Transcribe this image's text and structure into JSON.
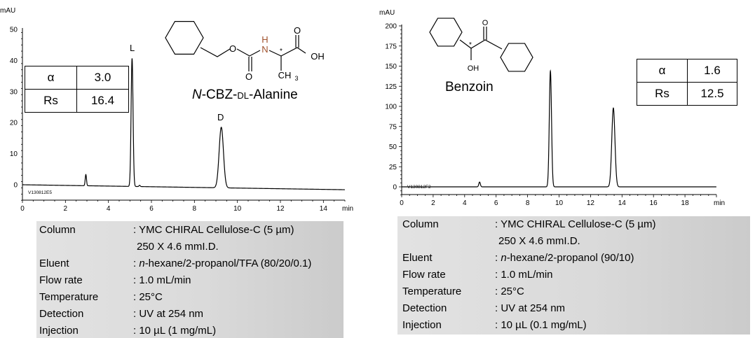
{
  "chart_data": [
    {
      "type": "line",
      "title": "N-CBZ-DL-Alanine",
      "title_prefix": "N",
      "title_mid": "-CBZ-",
      "title_dl": "DL",
      "title_suffix": "-Alanine",
      "ylabel": "mAU",
      "xlabel": "min",
      "xlim": [
        0,
        15
      ],
      "ylim": [
        -5,
        50
      ],
      "xticks": [
        0,
        2,
        4,
        6,
        8,
        10,
        12,
        14
      ],
      "yticks": [
        0,
        10,
        20,
        30,
        40,
        50
      ],
      "run_id": "V130812E5",
      "baseline": {
        "start": 0,
        "end": -1.6
      },
      "peaks": [
        {
          "t": 2.95,
          "height": 3.6,
          "width": 0.03
        },
        {
          "t": 5.1,
          "height": 41.2,
          "width": 0.045,
          "label": "L"
        },
        {
          "t": 5.45,
          "height": 0.4,
          "width": 0.03
        },
        {
          "t": 9.25,
          "height": 19.5,
          "width": 0.1,
          "label": "D"
        }
      ],
      "stats": {
        "alpha_label": "α",
        "alpha": "3.0",
        "rs_label": "Rs",
        "rs": "16.4"
      },
      "line_color": "#000000"
    },
    {
      "type": "line",
      "title": "Benzoin",
      "ylabel": "mAU",
      "xlabel": "min",
      "xlim": [
        0,
        20
      ],
      "ylim": [
        -10,
        200
      ],
      "xticks": [
        0,
        2,
        4,
        6,
        8,
        10,
        12,
        14,
        16,
        18
      ],
      "yticks": [
        0,
        25,
        50,
        75,
        100,
        125,
        150,
        175,
        200
      ],
      "run_id": "V130812F2",
      "baseline": {
        "start": 0,
        "end": 0
      },
      "peaks": [
        {
          "t": 4.95,
          "height": 6,
          "width": 0.05
        },
        {
          "t": 9.45,
          "height": 144,
          "width": 0.07
        },
        {
          "t": 13.45,
          "height": 98,
          "width": 0.1
        }
      ],
      "stats": {
        "alpha_label": "α",
        "alpha": "1.6",
        "rs_label": "Rs",
        "rs": "12.5"
      },
      "line_color": "#000000"
    }
  ],
  "conditions": [
    {
      "rows": [
        {
          "label": "Column",
          "value": ": YMC CHIRAL Cellulose-C (5 µm)"
        },
        {
          "label": "",
          "value": "250 X 4.6 mmI.D."
        },
        {
          "label": "Eluent",
          "value_prefix": ": ",
          "value_italic": "n",
          "value": "-hexane/2-propanol/TFA (80/20/0.1)"
        },
        {
          "label": "Flow rate",
          "value": ": 1.0 mL/min"
        },
        {
          "label": "Temperature",
          "value": ": 25°C"
        },
        {
          "label": "Detection",
          "value": ": UV at 254 nm"
        },
        {
          "label": "Injection",
          "value": ": 10 µL (1 mg/mL)"
        }
      ]
    },
    {
      "rows": [
        {
          "label": "Column",
          "value": ": YMC CHIRAL Cellulose-C (5 µm)"
        },
        {
          "label": "",
          "value": "250 X 4.6 mmI.D."
        },
        {
          "label": "Eluent",
          "value_prefix": ": ",
          "value_italic": "n",
          "value": "-hexane/2-propanol (90/10)"
        },
        {
          "label": "Flow rate",
          "value": ": 1.0 mL/min"
        },
        {
          "label": "Temperature",
          "value": ": 25°C"
        },
        {
          "label": "Detection",
          "value": ": UV at 254 nm"
        },
        {
          "label": "Injection",
          "value": ": 10 µL (0.1 mg/mL)"
        }
      ]
    }
  ],
  "structures": {
    "alanine": {
      "atoms": [
        "O",
        "O",
        "O",
        "OH",
        "H",
        "N",
        "*",
        "CH",
        "3"
      ]
    },
    "benzoin": {
      "atoms": [
        "O",
        "*",
        "OH"
      ]
    }
  }
}
